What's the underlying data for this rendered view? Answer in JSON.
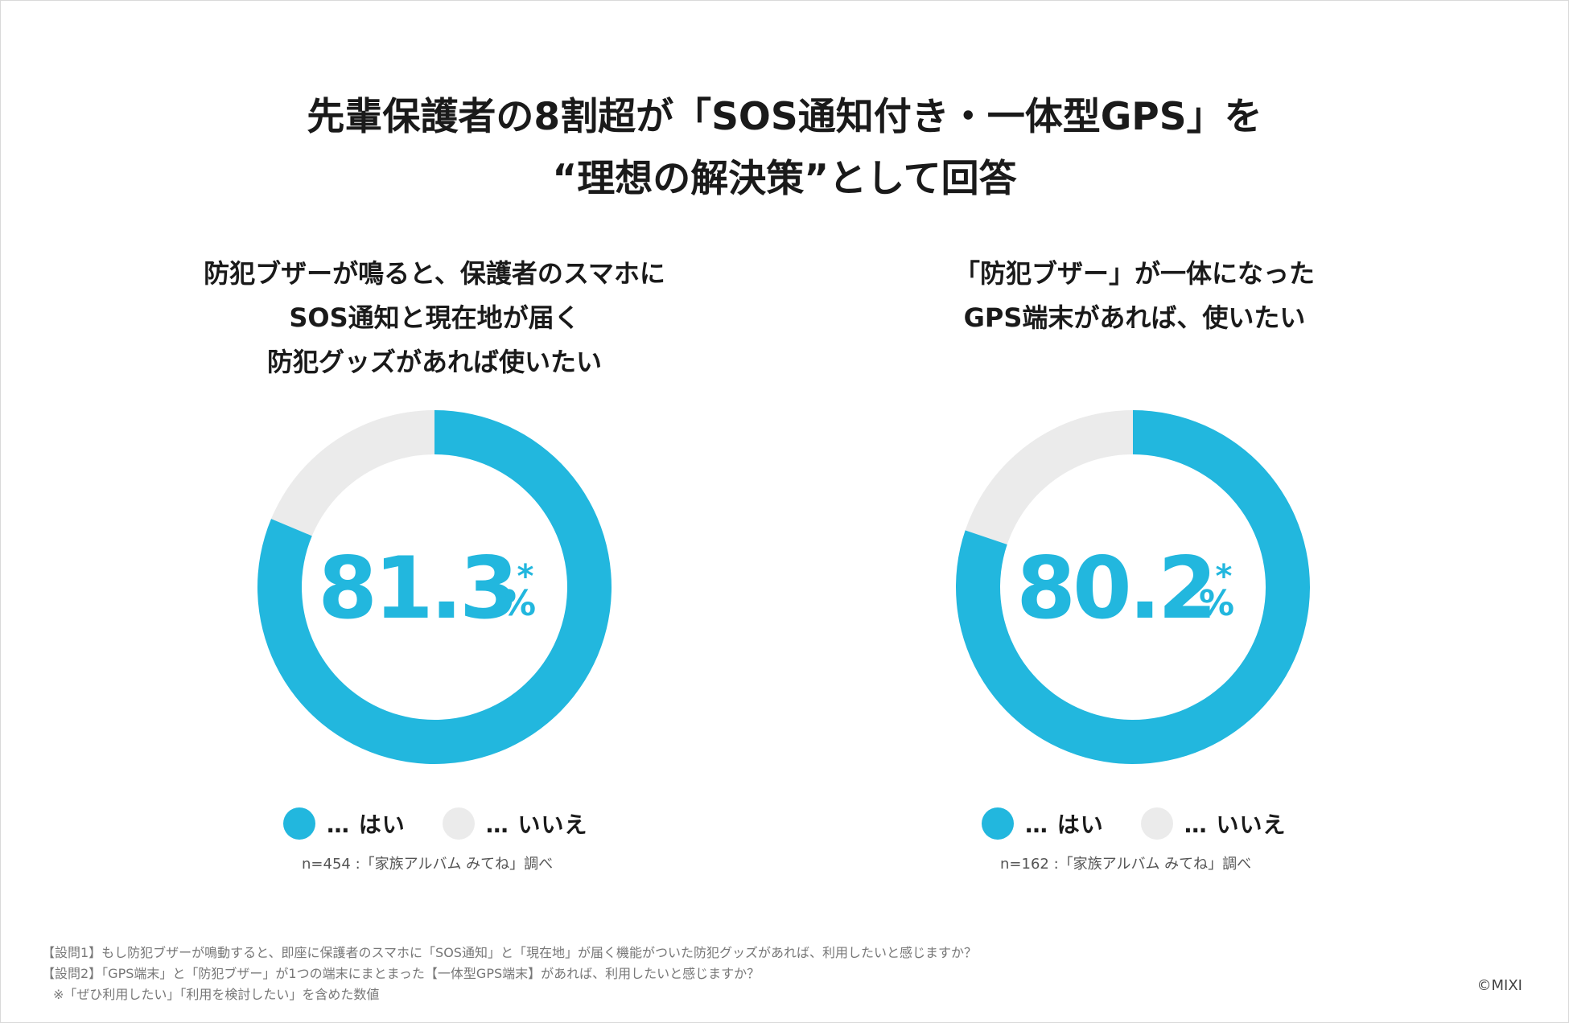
{
  "header": {
    "title_line1": "先輩保護者の8割超が「SOS通知付き・一体型GPS」を",
    "title_line2": "“理想の解決策”として回答"
  },
  "charts": [
    {
      "title_lines": [
        "防犯ブザーが鳴ると、保護者のスマホに",
        "SOS通知と現在地が届く",
        "防犯グッズがあれば使いたい"
      ],
      "value_text": "81.3",
      "percent_sign": "%",
      "asterisk": "*",
      "legend_yes": "… はい",
      "legend_no": "… いいえ",
      "source": "n=454 :「家族アルバム みてね」調べ"
    },
    {
      "title_lines": [
        "「防犯ブザー」が一体になった",
        "GPS端末があれば、使いたい"
      ],
      "value_text": "80.2",
      "percent_sign": "%",
      "asterisk": "*",
      "legend_yes": "… はい",
      "legend_no": "… いいえ",
      "source": "n=162 :「家族アルバム みてね」調べ"
    }
  ],
  "chart_data": [
    {
      "type": "pie",
      "title": "防犯ブザーが鳴ると、保護者のスマホにSOS通知と現在地が届く防犯グッズがあれば使いたい",
      "categories": [
        "はい",
        "いいえ"
      ],
      "values": [
        81.3,
        18.7
      ],
      "colors": [
        "#22b7de",
        "#ebebeb"
      ],
      "n": 454
    },
    {
      "type": "pie",
      "title": "「防犯ブザー」が一体になったGPS端末があれば、使いたい",
      "categories": [
        "はい",
        "いいえ"
      ],
      "values": [
        80.2,
        19.8
      ],
      "colors": [
        "#22b7de",
        "#ebebeb"
      ],
      "n": 162
    }
  ],
  "footnotes": [
    "【設問1】もし防犯ブザーが鳴動すると、即座に保護者のスマホに「SOS通知」と「現在地」が届く機能がついた防犯グッズがあれば、利用したいと感じますか？",
    "【設問2】「GPS端末」と「防犯ブザー」が1つの端末にまとまった【一体型GPS端末】があれば、利用したいと感じますか？",
    "※「ぜひ利用したい」「利用を検討したい」を含めた数値"
  ],
  "copyright": "©MIXI"
}
